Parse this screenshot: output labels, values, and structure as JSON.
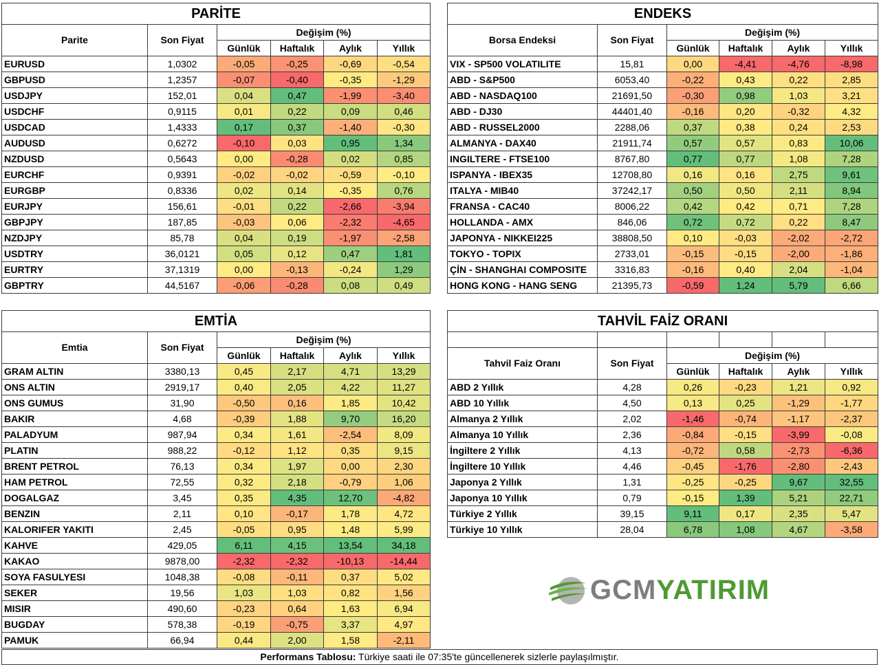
{
  "change_header": "Değişim (%)",
  "period_headers": [
    "Günlük",
    "Haftalık",
    "Aylık",
    "Yıllık"
  ],
  "price_header": "Son Fiyat",
  "parite": {
    "title": "PARİTE",
    "name_header": "Parite",
    "rows": [
      {
        "name": "EURUSD",
        "price": "1,0302",
        "values": [
          "-0,05",
          "-0,25",
          "-0,69",
          "-0,54"
        ]
      },
      {
        "name": "GBPUSD",
        "price": "1,2357",
        "values": [
          "-0,07",
          "-0,40",
          "-0,35",
          "-1,29"
        ]
      },
      {
        "name": "USDJPY",
        "price": "152,01",
        "values": [
          "0,04",
          "0,47",
          "-1,99",
          "-3,40"
        ]
      },
      {
        "name": "USDCHF",
        "price": "0,9115",
        "values": [
          "0,01",
          "0,22",
          "0,09",
          "0,46"
        ]
      },
      {
        "name": "USDCAD",
        "price": "1,4333",
        "values": [
          "0,17",
          "0,37",
          "-1,40",
          "-0,30"
        ]
      },
      {
        "name": "AUDUSD",
        "price": "0,6272",
        "values": [
          "-0,10",
          "0,03",
          "0,95",
          "1,34"
        ]
      },
      {
        "name": "NZDUSD",
        "price": "0,5643",
        "values": [
          "0,00",
          "-0,28",
          "0,02",
          "0,85"
        ]
      },
      {
        "name": "EURCHF",
        "price": "0,9391",
        "values": [
          "-0,02",
          "-0,02",
          "-0,59",
          "-0,10"
        ]
      },
      {
        "name": "EURGBP",
        "price": "0,8336",
        "values": [
          "0,02",
          "0,14",
          "-0,35",
          "0,76"
        ]
      },
      {
        "name": "EURJPY",
        "price": "156,61",
        "values": [
          "-0,01",
          "0,22",
          "-2,66",
          "-3,94"
        ]
      },
      {
        "name": "GBPJPY",
        "price": "187,85",
        "values": [
          "-0,03",
          "0,06",
          "-2,32",
          "-4,65"
        ]
      },
      {
        "name": "NZDJPY",
        "price": "85,78",
        "values": [
          "0,04",
          "0,19",
          "-1,97",
          "-2,58"
        ]
      },
      {
        "name": "USDTRY",
        "price": "36,0121",
        "values": [
          "0,05",
          "0,12",
          "0,47",
          "1,81"
        ]
      },
      {
        "name": "EURTRY",
        "price": "37,1319",
        "values": [
          "0,00",
          "-0,13",
          "-0,24",
          "1,29"
        ]
      },
      {
        "name": "GBPTRY",
        "price": "44,5167",
        "values": [
          "-0,06",
          "-0,28",
          "0,08",
          "0,49"
        ]
      }
    ]
  },
  "endeks": {
    "title": "ENDEKS",
    "name_header": "Borsa Endeksi",
    "rows": [
      {
        "name": "VIX  - SP500 VOLATILITE",
        "price": "15,81",
        "values": [
          "0,00",
          "-4,41",
          "-4,76",
          "-8,98"
        ]
      },
      {
        "name": "ABD - S&P500",
        "price": "6053,40",
        "values": [
          "-0,22",
          "0,43",
          "0,22",
          "2,85"
        ]
      },
      {
        "name": "ABD - NASDAQ100",
        "price": "21691,50",
        "values": [
          "-0,30",
          "0,98",
          "1,03",
          "3,21"
        ]
      },
      {
        "name": "ABD - DJ30",
        "price": "44401,40",
        "values": [
          "-0,16",
          "0,20",
          "-0,32",
          "4,32"
        ]
      },
      {
        "name": "ABD - RUSSEL2000",
        "price": "2288,06",
        "values": [
          "0,37",
          "0,38",
          "0,24",
          "2,53"
        ]
      },
      {
        "name": "ALMANYA - DAX40",
        "price": "21911,74",
        "values": [
          "0,57",
          "0,57",
          "0,83",
          "10,06"
        ]
      },
      {
        "name": "INGILTERE - FTSE100",
        "price": "8767,80",
        "values": [
          "0,77",
          "0,77",
          "1,08",
          "7,28"
        ]
      },
      {
        "name": "ISPANYA - IBEX35",
        "price": "12708,80",
        "values": [
          "0,16",
          "0,16",
          "2,75",
          "9,61"
        ]
      },
      {
        "name": "ITALYA - MIB40",
        "price": "37242,17",
        "values": [
          "0,50",
          "0,50",
          "2,11",
          "8,94"
        ]
      },
      {
        "name": "FRANSA - CAC40",
        "price": "8006,22",
        "values": [
          "0,42",
          "0,42",
          "0,71",
          "7,28"
        ]
      },
      {
        "name": "HOLLANDA - AMX",
        "price": "846,06",
        "values": [
          "0,72",
          "0,72",
          "0,22",
          "8,47"
        ]
      },
      {
        "name": "JAPONYA - NIKKEI225",
        "price": "38808,50",
        "values": [
          "0,10",
          "-0,03",
          "-2,02",
          "-2,72"
        ]
      },
      {
        "name": "TOKYO - TOPIX",
        "price": "2733,01",
        "values": [
          "-0,15",
          "-0,15",
          "-2,00",
          "-1,86"
        ]
      },
      {
        "name": "ÇİN - SHANGHAI COMPOSITE",
        "price": "3316,83",
        "values": [
          "-0,16",
          "0,40",
          "2,04",
          "-1,04"
        ]
      },
      {
        "name": "HONG KONG - HANG SENG",
        "price": "21395,73",
        "values": [
          "-0,59",
          "1,24",
          "5,79",
          "6,66"
        ]
      }
    ]
  },
  "emtia": {
    "title": "EMTİA",
    "name_header": "Emtia",
    "rows": [
      {
        "name": "GRAM ALTIN",
        "price": "3380,13",
        "values": [
          "0,45",
          "2,17",
          "4,71",
          "13,29"
        ]
      },
      {
        "name": "ONS ALTIN",
        "price": "2919,17",
        "values": [
          "0,40",
          "2,05",
          "4,22",
          "11,27"
        ]
      },
      {
        "name": "ONS GUMUS",
        "price": "31,90",
        "values": [
          "-0,50",
          "0,16",
          "1,85",
          "10,42"
        ]
      },
      {
        "name": "BAKIR",
        "price": "4,68",
        "values": [
          "-0,39",
          "1,88",
          "9,70",
          "16,20"
        ]
      },
      {
        "name": "PALADYUM",
        "price": "987,94",
        "values": [
          "0,34",
          "1,61",
          "-2,54",
          "8,09"
        ]
      },
      {
        "name": "PLATIN",
        "price": "988,22",
        "values": [
          "-0,12",
          "1,12",
          "0,35",
          "9,15"
        ]
      },
      {
        "name": "BRENT PETROL",
        "price": "76,13",
        "values": [
          "0,34",
          "1,97",
          "0,00",
          "2,30"
        ]
      },
      {
        "name": "HAM PETROL",
        "price": "72,55",
        "values": [
          "0,32",
          "2,18",
          "-0,79",
          "1,06"
        ]
      },
      {
        "name": "DOGALGAZ",
        "price": "3,45",
        "values": [
          "0,35",
          "4,35",
          "12,70",
          "-4,82"
        ]
      },
      {
        "name": "BENZIN",
        "price": "2,11",
        "values": [
          "0,10",
          "-0,17",
          "1,78",
          "4,72"
        ]
      },
      {
        "name": "KALORIFER YAKITI",
        "price": "2,45",
        "values": [
          "-0,05",
          "0,95",
          "1,48",
          "5,99"
        ]
      },
      {
        "name": "KAHVE",
        "price": "429,05",
        "values": [
          "6,11",
          "4,15",
          "13,54",
          "34,18"
        ]
      },
      {
        "name": "KAKAO",
        "price": "9878,00",
        "values": [
          "-2,32",
          "-2,32",
          "-10,13",
          "-14,44"
        ]
      },
      {
        "name": "SOYA FASULYESI",
        "price": "1048,38",
        "values": [
          "-0,08",
          "-0,11",
          "0,37",
          "5,02"
        ]
      },
      {
        "name": "SEKER",
        "price": "19,56",
        "values": [
          "1,03",
          "1,03",
          "0,82",
          "1,56"
        ]
      },
      {
        "name": "MISIR",
        "price": "490,60",
        "values": [
          "-0,23",
          "0,64",
          "1,63",
          "6,94"
        ]
      },
      {
        "name": "BUGDAY",
        "price": "578,38",
        "values": [
          "-0,19",
          "-0,75",
          "3,37",
          "4,97"
        ]
      },
      {
        "name": "PAMUK",
        "price": "66,94",
        "values": [
          "0,44",
          "2,00",
          "1,58",
          "-2,11"
        ]
      }
    ]
  },
  "tahvil": {
    "title": "TAHVİL FAİZ ORANI",
    "name_header": "Tahvil Faiz Oranı",
    "rows": [
      {
        "name": "ABD 2 Yıllık",
        "price": "4,28",
        "values": [
          "0,26",
          "-0,23",
          "1,21",
          "0,92"
        ]
      },
      {
        "name": "ABD 10 Yıllık",
        "price": "4,50",
        "values": [
          "0,13",
          "0,25",
          "-1,29",
          "-1,77"
        ]
      },
      {
        "name": "Almanya 2 Yıllık",
        "price": "2,02",
        "values": [
          "-1,46",
          "-0,74",
          "-1,17",
          "-2,37"
        ]
      },
      {
        "name": "Almanya 10 Yıllık",
        "price": "2,36",
        "values": [
          "-0,84",
          "-0,15",
          "-3,99",
          "-0,08"
        ]
      },
      {
        "name": "İngiltere 2 Yıllık",
        "price": "4,13",
        "values": [
          "-0,72",
          "0,58",
          "-2,73",
          "-6,36"
        ]
      },
      {
        "name": "İngiltere 10 Yıllık",
        "price": "4,46",
        "values": [
          "-0,45",
          "-1,76",
          "-2,80",
          "-2,43"
        ]
      },
      {
        "name": "Japonya 2 Yıllık",
        "price": "1,31",
        "values": [
          "-0,25",
          "-0,25",
          "9,67",
          "32,55"
        ]
      },
      {
        "name": "Japonya 10 Yıllık",
        "price": "0,79",
        "values": [
          "-0,15",
          "1,39",
          "5,21",
          "22,71"
        ]
      },
      {
        "name": "Türkiye 2 Yıllık",
        "price": "39,15",
        "values": [
          "9,11",
          "0,17",
          "2,35",
          "5,47"
        ]
      },
      {
        "name": "Türkiye 10 Yıllık",
        "price": "28,04",
        "values": [
          "6,78",
          "1,08",
          "4,67",
          "-3,58"
        ]
      }
    ]
  },
  "logo": {
    "part1": "GCM",
    "part2": "YATIRIM"
  },
  "footer": {
    "label": "Performans Tablosu:",
    "text": " Türkiye saati ile 07:35'te güncellenerek sizlerle paylaşılmıştır."
  },
  "colors": {
    "red": "#f8696b",
    "yellow": "#ffeb84",
    "green": "#63be7b"
  }
}
